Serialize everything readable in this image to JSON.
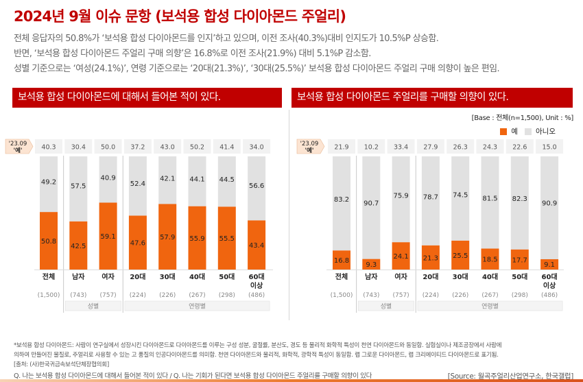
{
  "title": "2024년 9월 이슈 문항 (보석용 합성 다이아몬드 주얼리)",
  "summary": [
    "전체 응답자의 50.8%가 ‘보석용 합성 다이아몬드를 인지’하고 있으며, 이전 조사(40.3%)대비 인지도가 10.5%P 상승함.",
    "반면, ‘보석용 합성 다이아몬드 주얼리 구매 의향’은 16.8%로 이전 조사(21.9%) 대비 5.1%P 감소함.",
    "성별 기준으로는 ‘여성(24.1%)’, 연령 기준으로는 ‘20대(21.3%)’, ‘30대(25.5%)’ 보석용 합성 다이아몬드 주얼리 구매 의향이 높은 편임."
  ],
  "base_note": "[Base : 전체(n=1,500), Unit : %]",
  "legend": {
    "yes": "예",
    "no": "아니오"
  },
  "colors": {
    "yes": "#f0650f",
    "no": "#e1e1e1",
    "header": "#c00000",
    "prev_bg": "#f2f2f2",
    "tag_bg": "#fce4d2"
  },
  "prev_tag": [
    "'23.09",
    "'예'"
  ],
  "group_labels": {
    "gender": "성별",
    "age": "연령별"
  },
  "footnotes": [
    "*보석용 합성 다이아몬드: 사람이 연구실에서 성장시킨 다이아몬드로 다이아몬드를 이루는 구성 성분, 굴절률, 분산도, 경도 등 물리적 화학적 특성이 천연 다이아몬드와 동일함. 실험실이나 제조공장에서 사람에",
    "의하여 만들어진 물질로, 주얼리로 사용할 수 있는 고 품질의 인공다이아몬드를 의미함. 천연 다이아몬드와 물리적, 화학적, 광학적 특성이 동일함. 랩 그로운 다이아몬드, 랩 크리에이티드 다이아몬드로 표기됨.",
    "[출처: (사)한국귀금속보석단체장협의회]"
  ],
  "question": "Q. 나는 보석용 합성 다이아몬드에 대해서 들어본 적이 있다 / Q. 나는 기회가 된다면 보석용 합성 다이아몬드 주얼리를 구매할 의향이 있다",
  "source": "[Source: 월곡주얼리산업연구소, 한국갤럽]",
  "chart_data": [
    {
      "type": "bar",
      "stacked": true,
      "title": "보석용 합성 다이아몬드에 대해서 들어본 적이 있다.",
      "categories": [
        "전체",
        "남자",
        "여자",
        "20대",
        "30대",
        "40대",
        "50대",
        "60대 이상"
      ],
      "category_lines": [
        [
          "전체"
        ],
        [
          "남자"
        ],
        [
          "여자"
        ],
        [
          "20대"
        ],
        [
          "30대"
        ],
        [
          "40대"
        ],
        [
          "50대"
        ],
        [
          "60대",
          "이상"
        ]
      ],
      "n": [
        "(1,500)",
        "(743)",
        "(757)",
        "(224)",
        "(226)",
        "(267)",
        "(298)",
        "(486)"
      ],
      "series": [
        {
          "name": "예",
          "values": [
            50.8,
            42.5,
            59.1,
            47.6,
            57.9,
            55.9,
            55.5,
            43.4
          ]
        },
        {
          "name": "아니오",
          "values": [
            49.2,
            57.5,
            40.9,
            52.4,
            42.1,
            44.1,
            44.5,
            56.6
          ]
        }
      ],
      "previous_yes_2023_09": [
        40.3,
        30.4,
        50.0,
        37.2,
        43.0,
        50.2,
        41.4,
        34.0
      ],
      "ylim": [
        0,
        100
      ],
      "unit": "%"
    },
    {
      "type": "bar",
      "stacked": true,
      "title": "보석용 합성 다이아몬드 주얼리를 구매할 의향이 있다.",
      "categories": [
        "전체",
        "남자",
        "여자",
        "20대",
        "30대",
        "40대",
        "50대",
        "60대 이상"
      ],
      "category_lines": [
        [
          "전체"
        ],
        [
          "남자"
        ],
        [
          "여자"
        ],
        [
          "20대"
        ],
        [
          "30대"
        ],
        [
          "40대"
        ],
        [
          "50대"
        ],
        [
          "60대",
          "이상"
        ]
      ],
      "n": [
        "(1,500)",
        "(743)",
        "(757)",
        "(224)",
        "(226)",
        "(267)",
        "(298)",
        "(486)"
      ],
      "series": [
        {
          "name": "예",
          "values": [
            16.8,
            9.3,
            24.1,
            21.3,
            25.5,
            18.5,
            17.7,
            9.1
          ]
        },
        {
          "name": "아니오",
          "values": [
            83.2,
            90.7,
            75.9,
            78.7,
            74.5,
            81.5,
            82.3,
            90.9
          ]
        }
      ],
      "previous_yes_2023_09": [
        21.9,
        10.2,
        33.4,
        27.9,
        26.3,
        24.3,
        22.6,
        15.0
      ],
      "ylim": [
        0,
        100
      ],
      "unit": "%"
    }
  ]
}
